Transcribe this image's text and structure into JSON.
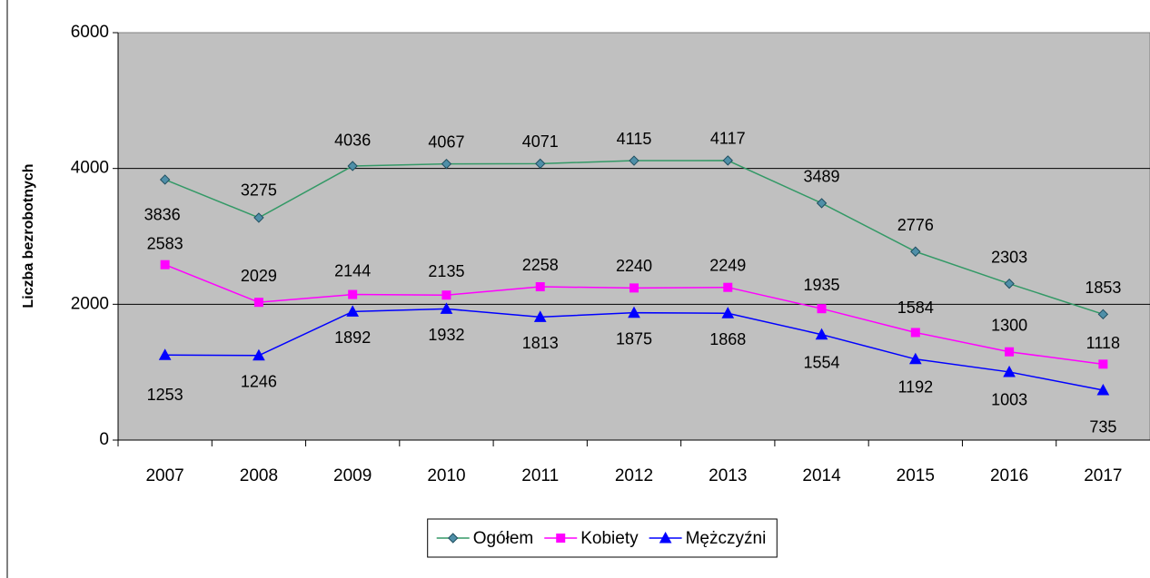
{
  "chart_data": {
    "type": "line",
    "y_label": "Liczba bezrobotnych",
    "categories": [
      "2007",
      "2008",
      "2009",
      "2010",
      "2011",
      "2012",
      "2013",
      "2014",
      "2015",
      "2016",
      "2017"
    ],
    "series": [
      {
        "name": "Ogółem",
        "color": "#339966",
        "marker": "diamond",
        "values": [
          3836,
          3275,
          4036,
          4067,
          4071,
          4115,
          4117,
          3489,
          2776,
          2303,
          1853
        ]
      },
      {
        "name": "Kobiety",
        "color": "#ff00ff",
        "marker": "square",
        "values": [
          2583,
          2029,
          2144,
          2135,
          2258,
          2240,
          2249,
          1935,
          1584,
          1300,
          1118
        ]
      },
      {
        "name": "Mężczyźni",
        "color": "#0000ff",
        "marker": "triangle",
        "values": [
          1253,
          1246,
          1892,
          1932,
          1813,
          1875,
          1868,
          1554,
          1192,
          1003,
          735
        ]
      }
    ],
    "ylim": [
      0,
      6000
    ],
    "yticks": [
      0,
      2000,
      4000,
      6000
    ],
    "grid": true,
    "legend": "bottom"
  }
}
